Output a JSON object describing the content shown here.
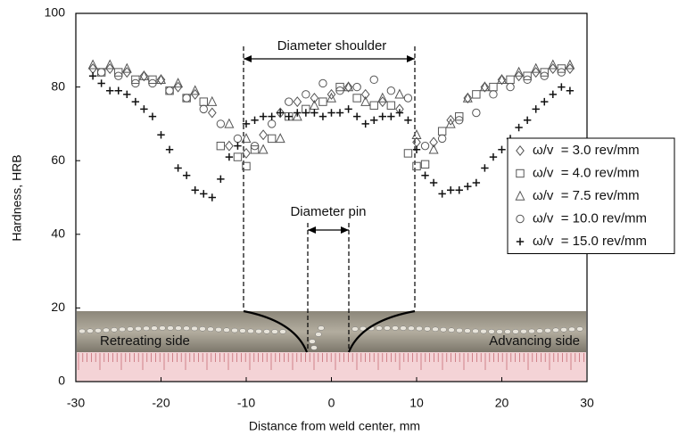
{
  "chart_data": {
    "type": "scatter",
    "xlabel": "Distance from weld center, mm",
    "ylabel": "Hardness, HRB",
    "xlim": [
      -30,
      30
    ],
    "xticks": [
      -30,
      -20,
      -10,
      0,
      10,
      20,
      30
    ],
    "ylim": [
      0,
      100
    ],
    "yticks": [
      0,
      20,
      40,
      60,
      80,
      100
    ],
    "grid": false,
    "legend": "right",
    "annotations": [
      "Diameter shoulder",
      "Diameter pin",
      "Retreating side",
      "Advancing side"
    ],
    "series": [
      {
        "name": "ω/v  = 3.0 rev/mm",
        "marker": "diamond",
        "color": "#555555",
        "x": [
          -28,
          -26,
          -24,
          -22,
          -20,
          -18,
          -16,
          -14,
          -12,
          -10,
          -8,
          -6,
          -4,
          -2,
          0,
          2,
          4,
          6,
          8,
          10,
          12,
          14,
          16,
          18,
          20,
          22,
          24,
          26,
          28
        ],
        "values": [
          85,
          85,
          84,
          83,
          82,
          80,
          78,
          73,
          64,
          62,
          67,
          73,
          76,
          77,
          78,
          80,
          78,
          76,
          74,
          65,
          65,
          71,
          77,
          80,
          82,
          83,
          84,
          85,
          85
        ]
      },
      {
        "name": "ω/v  = 4.0 rev/mm",
        "marker": "square",
        "color": "#555555",
        "x": [
          -27,
          -25,
          -23,
          -21,
          -19,
          -17,
          -15,
          -13,
          -11,
          -10,
          -9,
          -7,
          -5,
          -3,
          -1,
          1,
          3,
          5,
          7,
          9,
          10,
          11,
          13,
          15,
          17,
          19,
          21,
          23,
          25,
          27
        ],
        "values": [
          84,
          84,
          82,
          82,
          79,
          77,
          76,
          64,
          61,
          58.5,
          63,
          66,
          72,
          74,
          76,
          80,
          77,
          75,
          75,
          62,
          58.5,
          59,
          68,
          72,
          78,
          80,
          82,
          83,
          84,
          85
        ]
      },
      {
        "name": "ω/v  = 7.5 rev/mm",
        "marker": "triangle",
        "color": "#555555",
        "x": [
          -28,
          -26,
          -24,
          -22,
          -20,
          -18,
          -16,
          -14,
          -12,
          -10,
          -8,
          -6,
          -4,
          -2,
          0,
          2,
          4,
          6,
          8,
          10,
          12,
          14,
          16,
          18,
          20,
          22,
          24,
          26,
          28
        ],
        "values": [
          86,
          86,
          85,
          83,
          82,
          81,
          79,
          76,
          70,
          66,
          63,
          66,
          72,
          75,
          77,
          80,
          76,
          77,
          78,
          67,
          63,
          70,
          77,
          80,
          82,
          84,
          85,
          86,
          86
        ]
      },
      {
        "name": "ω/v  = 10.0 rev/mm",
        "marker": "circle",
        "color": "#555555",
        "x": [
          -27,
          -25,
          -23,
          -21,
          -19,
          -17,
          -15,
          -13,
          -11,
          -9,
          -7,
          -5,
          -3,
          -1,
          1,
          3,
          5,
          7,
          9,
          11,
          13,
          15,
          17,
          19,
          21,
          23,
          25,
          27
        ],
        "values": [
          84,
          83,
          81,
          81,
          79,
          77,
          74,
          70,
          66,
          64,
          70,
          76,
          78,
          81,
          79,
          80,
          82,
          79,
          77,
          64,
          66,
          71,
          73,
          78,
          80,
          82,
          83,
          84
        ]
      },
      {
        "name": "ω/v  = 15.0 rev/mm",
        "marker": "plus",
        "color": "#111111",
        "x": [
          -28,
          -27,
          -26,
          -25,
          -24,
          -23,
          -22,
          -21,
          -20,
          -19,
          -18,
          -17,
          -16,
          -15,
          -14,
          -13,
          -12,
          -11,
          -10,
          -9,
          -8,
          -7,
          -6,
          -5,
          -4,
          -3,
          -2,
          -1,
          0,
          1,
          2,
          3,
          4,
          5,
          6,
          7,
          8,
          9,
          10,
          11,
          12,
          13,
          14,
          15,
          16,
          17,
          18,
          19,
          20,
          21,
          22,
          23,
          24,
          25,
          26,
          27,
          28
        ],
        "values": [
          83,
          81,
          79,
          79,
          78,
          76,
          74,
          72,
          67,
          63,
          58,
          56,
          52,
          51,
          50,
          55,
          61,
          64,
          70,
          71,
          72,
          72,
          73,
          72,
          73,
          73,
          73,
          72,
          73,
          73,
          74,
          72,
          70,
          71,
          72,
          72,
          73,
          71,
          63,
          56,
          54,
          51,
          52,
          52,
          53,
          54,
          58,
          61,
          63,
          66,
          69,
          71,
          74,
          76,
          78,
          80,
          79
        ]
      }
    ]
  }
}
